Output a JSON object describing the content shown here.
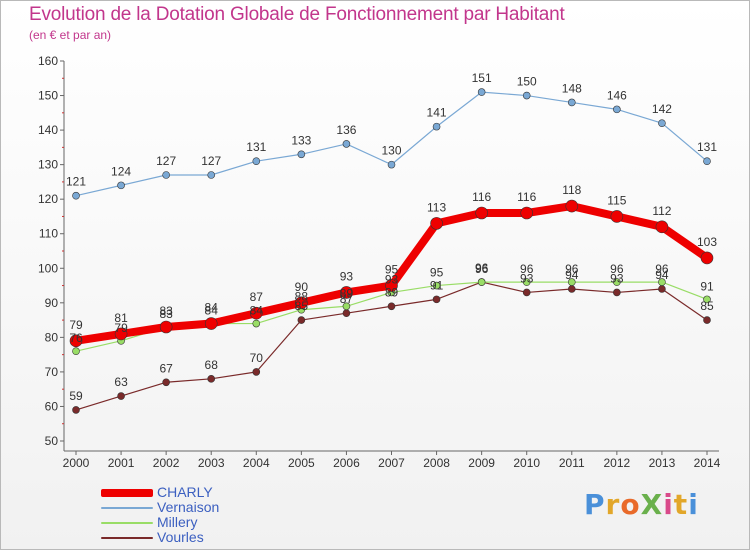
{
  "header": {
    "title": "Evolution de la Dotation Globale de Fonctionnement par Habitant",
    "subtitle": "(en € et par an)"
  },
  "logo": {
    "text": "ProXiti"
  },
  "chart_data": {
    "type": "line",
    "title": "Evolution de la Dotation Globale de Fonctionnement par Habitant",
    "subtitle": "(en € et par an)",
    "xlabel": "",
    "ylabel": "",
    "x": [
      "2000",
      "2001",
      "2002",
      "2003",
      "2004",
      "2005",
      "2006",
      "2007",
      "2008",
      "2009",
      "2010",
      "2011",
      "2012",
      "2013",
      "2014"
    ],
    "ylim": [
      50,
      160
    ],
    "yticks": [
      50,
      60,
      70,
      80,
      90,
      100,
      110,
      120,
      130,
      140,
      150,
      160
    ],
    "grid": false,
    "legend": "bottom-left",
    "series": [
      {
        "name": "CHARLY",
        "color": "#ee0000",
        "values": [
          79,
          81,
          83,
          84,
          87,
          90,
          93,
          95,
          113,
          116,
          116,
          118,
          115,
          112,
          103
        ]
      },
      {
        "name": "Vernaison",
        "color": "#7aa8d4",
        "values": [
          121,
          124,
          127,
          127,
          131,
          133,
          136,
          130,
          141,
          151,
          150,
          148,
          146,
          142,
          131
        ]
      },
      {
        "name": "Millery",
        "color": "#99dd66",
        "values": [
          76,
          79,
          83,
          84,
          84,
          88,
          89,
          93,
          95,
          96,
          96,
          96,
          96,
          96,
          91
        ]
      },
      {
        "name": "Vourles",
        "color": "#7a2a2a",
        "values": [
          59,
          63,
          67,
          68,
          70,
          85,
          87,
          89,
          91,
          96,
          93,
          94,
          93,
          94,
          85
        ]
      }
    ]
  }
}
